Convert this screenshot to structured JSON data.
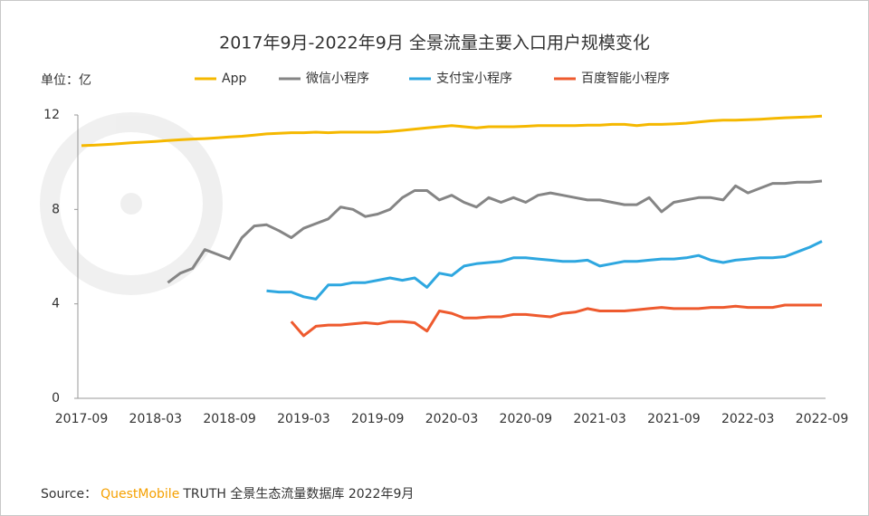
{
  "chart_data": {
    "type": "line",
    "title": "2017年9月-2022年9月 全景流量主要入口用户规模变化",
    "unit_label": "单位：亿",
    "categories": [
      "2017-09",
      null,
      null,
      null,
      null,
      null,
      "2018-03",
      null,
      null,
      null,
      null,
      null,
      "2018-09",
      null,
      null,
      null,
      null,
      null,
      "2019-03",
      null,
      null,
      null,
      null,
      null,
      "2019-09",
      null,
      null,
      null,
      null,
      null,
      "2020-03",
      null,
      null,
      null,
      null,
      null,
      "2020-09",
      null,
      null,
      null,
      null,
      null,
      "2021-03",
      null,
      null,
      null,
      null,
      null,
      "2021-09",
      null,
      null,
      null,
      null,
      null,
      "2022-03",
      null,
      null,
      null,
      null,
      null,
      "2022-09"
    ],
    "series": [
      {
        "name": "App",
        "color": "#f5b800",
        "values": [
          10.7,
          10.72,
          10.75,
          10.78,
          10.82,
          10.85,
          10.88,
          10.92,
          10.95,
          10.98,
          11.0,
          11.03,
          11.07,
          11.1,
          11.15,
          11.2,
          11.22,
          11.25,
          11.25,
          11.27,
          11.25,
          11.27,
          11.27,
          11.27,
          11.27,
          11.3,
          11.35,
          11.4,
          11.45,
          11.5,
          11.55,
          11.5,
          11.45,
          11.5,
          11.5,
          11.5,
          11.52,
          11.55,
          11.55,
          11.55,
          11.55,
          11.57,
          11.57,
          11.6,
          11.6,
          11.55,
          11.6,
          11.6,
          11.62,
          11.65,
          11.7,
          11.75,
          11.78,
          11.78,
          11.8,
          11.82,
          11.85,
          11.88,
          11.9,
          11.92,
          11.95
        ]
      },
      {
        "name": "微信小程序",
        "color": "#858585",
        "values": [
          null,
          null,
          null,
          null,
          null,
          null,
          null,
          4.9,
          5.3,
          5.5,
          6.3,
          6.1,
          5.9,
          6.8,
          7.3,
          7.35,
          7.1,
          6.8,
          7.2,
          7.4,
          7.6,
          8.1,
          8.0,
          7.7,
          7.8,
          8.0,
          8.5,
          8.8,
          8.8,
          8.4,
          8.6,
          8.3,
          8.1,
          8.5,
          8.3,
          8.5,
          8.3,
          8.6,
          8.7,
          8.6,
          8.5,
          8.4,
          8.4,
          8.3,
          8.2,
          8.2,
          8.5,
          7.9,
          8.3,
          8.4,
          8.5,
          8.5,
          8.4,
          9.0,
          8.7,
          8.9,
          9.1,
          9.1,
          9.15,
          9.15,
          9.2
        ]
      },
      {
        "name": "支付宝小程序",
        "color": "#2ea7e0",
        "values": [
          null,
          null,
          null,
          null,
          null,
          null,
          null,
          null,
          null,
          null,
          null,
          null,
          null,
          null,
          null,
          4.55,
          4.5,
          4.5,
          4.3,
          4.2,
          4.8,
          4.8,
          4.9,
          4.9,
          5.0,
          5.1,
          5.0,
          5.1,
          4.7,
          5.3,
          5.2,
          5.6,
          5.7,
          5.75,
          5.8,
          5.95,
          5.95,
          5.9,
          5.85,
          5.8,
          5.8,
          5.85,
          5.6,
          5.7,
          5.8,
          5.8,
          5.85,
          5.9,
          5.9,
          5.95,
          6.05,
          5.85,
          5.75,
          5.85,
          5.9,
          5.95,
          5.95,
          6.0,
          6.2,
          6.4,
          6.65
        ]
      },
      {
        "name": "百度智能小程序",
        "color": "#ee5a2e",
        "values": [
          null,
          null,
          null,
          null,
          null,
          null,
          null,
          null,
          null,
          null,
          null,
          null,
          null,
          null,
          null,
          null,
          null,
          3.25,
          2.65,
          3.05,
          3.1,
          3.1,
          3.15,
          3.2,
          3.15,
          3.25,
          3.25,
          3.2,
          2.85,
          3.7,
          3.6,
          3.4,
          3.4,
          3.45,
          3.45,
          3.55,
          3.55,
          3.5,
          3.45,
          3.6,
          3.65,
          3.8,
          3.7,
          3.7,
          3.7,
          3.75,
          3.8,
          3.85,
          3.8,
          3.8,
          3.8,
          3.85,
          3.85,
          3.9,
          3.85,
          3.85,
          3.85,
          3.95,
          3.95,
          3.95,
          3.95
        ]
      }
    ],
    "ylim": [
      0,
      12
    ],
    "yticks": [
      0,
      4,
      8,
      12
    ],
    "grid": false,
    "source": {
      "prefix": "Source：",
      "brand": "QuestMobile",
      "text": "TRUTH 全景生态流量数据库 2022年9月"
    }
  }
}
